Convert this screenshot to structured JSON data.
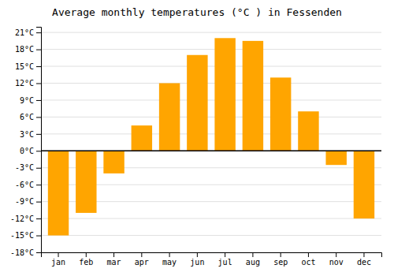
{
  "chart_data": {
    "type": "bar",
    "title": "Average monthly temperatures (°C ) in Fessenden",
    "categories": [
      "jan",
      "feb",
      "mar",
      "apr",
      "may",
      "jun",
      "jul",
      "aug",
      "sep",
      "oct",
      "nov",
      "dec"
    ],
    "values": [
      -15,
      -11,
      -4,
      4.5,
      12,
      17,
      20,
      19.5,
      13,
      7,
      -2.5,
      -12
    ],
    "color": "#FFA500",
    "ylim": [
      -18,
      22
    ],
    "yticks": [
      {
        "value": -18,
        "label": "-18°C"
      },
      {
        "value": -15,
        "label": "-15°C"
      },
      {
        "value": -12,
        "label": "-12°C"
      },
      {
        "value": -9,
        "label": "-9°C"
      },
      {
        "value": -6,
        "label": "-6°C"
      },
      {
        "value": -3,
        "label": "-3°C"
      },
      {
        "value": 0,
        "label": "0°C"
      },
      {
        "value": 3,
        "label": "3°C"
      },
      {
        "value": 6,
        "label": "6°C"
      },
      {
        "value": 9,
        "label": "9°C"
      },
      {
        "value": 12,
        "label": "12°C"
      },
      {
        "value": 15,
        "label": "15°C"
      },
      {
        "value": 18,
        "label": "18°C"
      },
      {
        "value": 21,
        "label": "21°C"
      }
    ],
    "grid": true
  }
}
